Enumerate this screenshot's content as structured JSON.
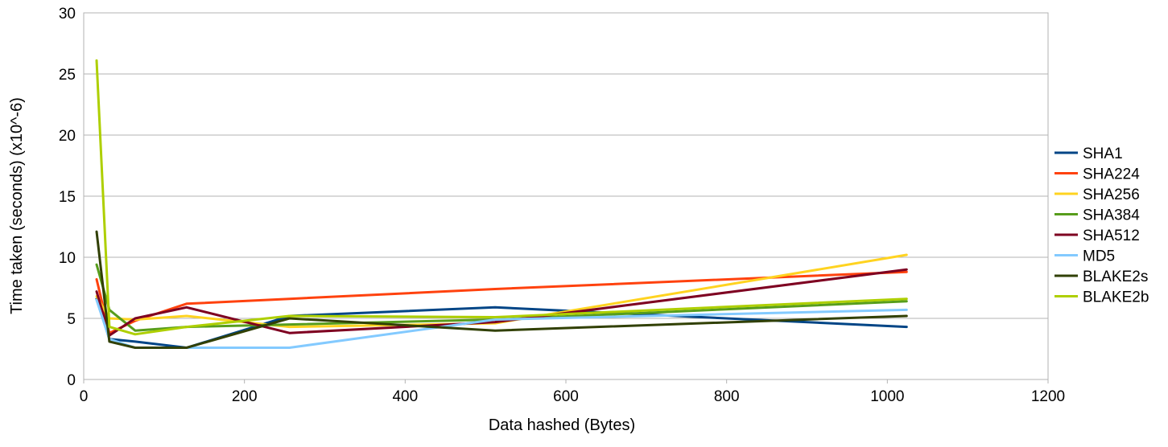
{
  "chart_data": {
    "type": "line",
    "title": "",
    "xlabel": "Data hashed (Bytes)",
    "ylabel": "Time taken (seconds) (x10^-6)",
    "xlim": [
      0,
      1200
    ],
    "ylim": [
      0,
      30
    ],
    "xticks": [
      0,
      200,
      400,
      600,
      800,
      1000,
      1200
    ],
    "yticks": [
      0,
      5,
      10,
      15,
      20,
      25,
      30
    ],
    "grid": "horizontal",
    "legend": "right",
    "x": [
      16,
      32,
      64,
      128,
      256,
      512,
      1024
    ],
    "series": [
      {
        "name": "SHA1",
        "color": "#004586",
        "values": [
          6.6,
          3.3,
          3.1,
          2.6,
          5.2,
          5.9,
          4.3
        ]
      },
      {
        "name": "SHA224",
        "color": "#ff420e",
        "values": [
          8.2,
          3.8,
          4.8,
          6.2,
          6.6,
          7.4,
          8.8
        ]
      },
      {
        "name": "SHA256",
        "color": "#ffd320",
        "values": [
          6.8,
          5.0,
          4.9,
          5.2,
          4.3,
          4.6,
          10.2
        ]
      },
      {
        "name": "SHA384",
        "color": "#579d1c",
        "values": [
          9.4,
          5.7,
          4.0,
          4.3,
          4.5,
          4.9,
          6.4
        ]
      },
      {
        "name": "SHA512",
        "color": "#7e0021",
        "values": [
          7.2,
          3.6,
          5.0,
          5.9,
          3.8,
          4.7,
          9.0
        ]
      },
      {
        "name": "MD5",
        "color": "#83caff",
        "values": [
          6.5,
          3.3,
          2.6,
          2.6,
          2.6,
          4.9,
          5.7
        ]
      },
      {
        "name": "BLAKE2s",
        "color": "#314004",
        "values": [
          12.1,
          3.1,
          2.6,
          2.6,
          5.0,
          4.0,
          5.2
        ]
      },
      {
        "name": "BLAKE2b",
        "color": "#aecf00",
        "values": [
          26.1,
          4.3,
          3.7,
          4.3,
          5.2,
          5.1,
          6.6
        ]
      }
    ]
  }
}
